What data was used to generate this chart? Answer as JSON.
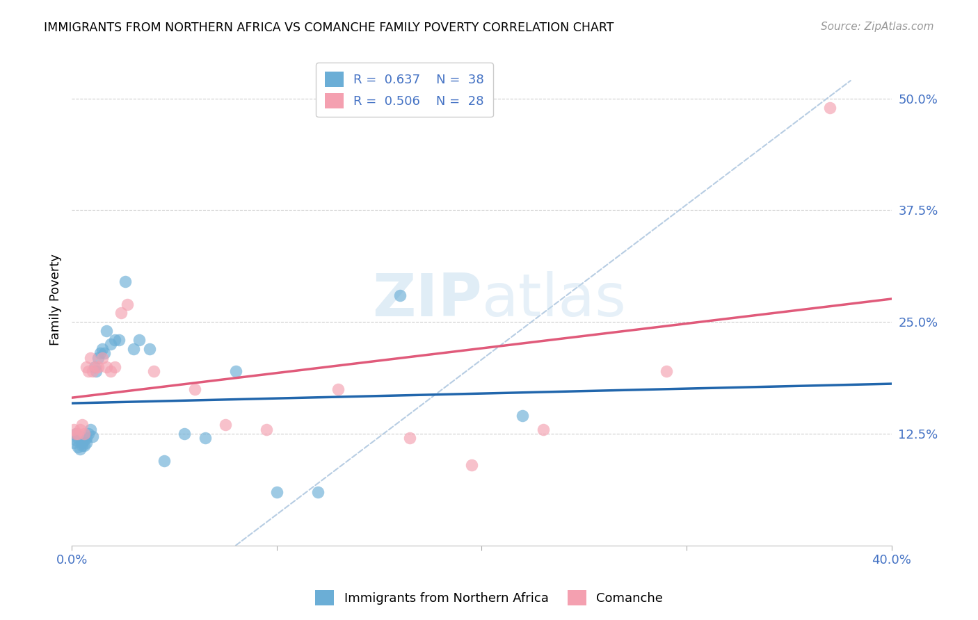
{
  "title": "IMMIGRANTS FROM NORTHERN AFRICA VS COMANCHE FAMILY POVERTY CORRELATION CHART",
  "source": "Source: ZipAtlas.com",
  "tick_color": "#4472c4",
  "ylabel": "Family Poverty",
  "xlim": [
    0.0,
    0.4
  ],
  "ylim": [
    0.0,
    0.55
  ],
  "watermark_text": "ZIPatlas",
  "color_blue": "#6baed6",
  "color_pink": "#f4a0b0",
  "line_blue": "#2166ac",
  "line_pink": "#e05a7a",
  "line_dashed_color": "#b0c8e0",
  "background_color": "#ffffff",
  "grid_color": "#cccccc",
  "blue_scatter_x": [
    0.001,
    0.002,
    0.002,
    0.003,
    0.003,
    0.004,
    0.004,
    0.005,
    0.005,
    0.006,
    0.006,
    0.007,
    0.007,
    0.008,
    0.009,
    0.01,
    0.011,
    0.012,
    0.013,
    0.014,
    0.015,
    0.016,
    0.017,
    0.019,
    0.021,
    0.023,
    0.026,
    0.03,
    0.033,
    0.038,
    0.045,
    0.055,
    0.065,
    0.08,
    0.1,
    0.12,
    0.16,
    0.22
  ],
  "blue_scatter_y": [
    0.115,
    0.118,
    0.125,
    0.11,
    0.12,
    0.108,
    0.122,
    0.115,
    0.112,
    0.118,
    0.112,
    0.115,
    0.12,
    0.125,
    0.13,
    0.122,
    0.2,
    0.195,
    0.21,
    0.215,
    0.22,
    0.215,
    0.24,
    0.225,
    0.23,
    0.23,
    0.295,
    0.22,
    0.23,
    0.22,
    0.095,
    0.125,
    0.12,
    0.195,
    0.06,
    0.06,
    0.28,
    0.145
  ],
  "pink_scatter_x": [
    0.001,
    0.002,
    0.003,
    0.004,
    0.005,
    0.006,
    0.007,
    0.008,
    0.009,
    0.01,
    0.012,
    0.013,
    0.015,
    0.017,
    0.019,
    0.021,
    0.024,
    0.027,
    0.04,
    0.06,
    0.075,
    0.095,
    0.13,
    0.165,
    0.195,
    0.23,
    0.29,
    0.37
  ],
  "pink_scatter_y": [
    0.13,
    0.125,
    0.125,
    0.13,
    0.135,
    0.125,
    0.2,
    0.195,
    0.21,
    0.195,
    0.2,
    0.2,
    0.21,
    0.2,
    0.195,
    0.2,
    0.26,
    0.27,
    0.195,
    0.175,
    0.135,
    0.13,
    0.175,
    0.12,
    0.09,
    0.13,
    0.195,
    0.49
  ]
}
